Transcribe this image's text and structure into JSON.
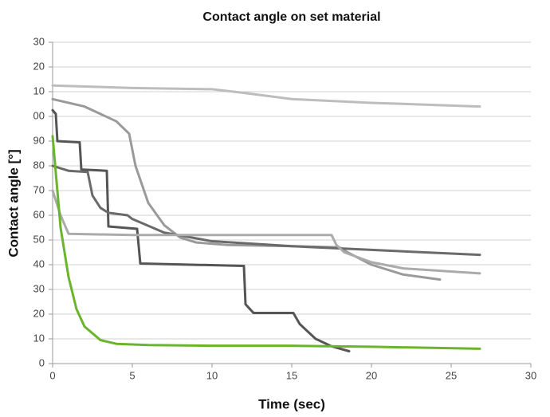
{
  "chart_data": {
    "type": "line",
    "title": "Contact angle on set material",
    "xlabel": "Time (sec)",
    "ylabel": "Contact angle [°]",
    "xlim": [
      0,
      30
    ],
    "xticks": [
      0,
      5,
      10,
      15,
      20,
      25,
      30
    ],
    "ylim": [
      0,
      130
    ],
    "yticks": [
      0,
      10,
      20,
      30,
      40,
      50,
      60,
      70,
      80,
      90,
      {
        "value": 100,
        "label": "00"
      },
      {
        "value": 110,
        "label": "10"
      },
      {
        "value": 120,
        "label": "20"
      },
      {
        "value": 130,
        "label": "30"
      }
    ],
    "grid": true,
    "series": [
      {
        "color": "#bdbdbd",
        "x": [
          0,
          5,
          10,
          12,
          15,
          20,
          26.8
        ],
        "values": [
          112.5,
          111.5,
          111,
          109.5,
          107,
          105.5,
          104
        ]
      },
      {
        "color": "#9a9a9a",
        "x": [
          0,
          2,
          4,
          4.8,
          5.2,
          6,
          7,
          8,
          9,
          11,
          15,
          18,
          18.5,
          20,
          22,
          24.3
        ],
        "values": [
          107,
          104,
          98,
          93,
          80,
          65,
          56,
          51,
          49,
          48,
          47.5,
          47,
          45,
          40,
          36,
          34
        ]
      },
      {
        "color": "#555555",
        "x": [
          0,
          0.2,
          0.3,
          1.7,
          1.8,
          3.4,
          3.5,
          5.3,
          5.5,
          12,
          12.1,
          12.6,
          15.1,
          15.5,
          16.5,
          17.5,
          18.6
        ],
        "values": [
          102.5,
          101,
          90,
          89.5,
          78.5,
          78,
          55.5,
          54.5,
          40.5,
          39.5,
          24,
          20.5,
          20.5,
          16,
          10,
          7,
          5
        ]
      },
      {
        "color": "#6a6a6a",
        "x": [
          0,
          1,
          2.2,
          2.5,
          3,
          3.5,
          4.7,
          5,
          7,
          10,
          15,
          20,
          26.8
        ],
        "values": [
          80,
          78,
          77.5,
          68,
          63,
          61,
          60,
          58.5,
          53,
          49.5,
          47.5,
          46,
          44
        ]
      },
      {
        "color": "#ababab",
        "x": [
          0,
          0.5,
          1,
          5,
          10,
          17.5,
          17.8,
          18.3,
          20,
          22,
          26.8
        ],
        "values": [
          70,
          60,
          52.5,
          52,
          52,
          52,
          48,
          45,
          41,
          38.5,
          36.5
        ]
      },
      {
        "color": "#6ab42e",
        "x": [
          0,
          0.5,
          1,
          1.5,
          2,
          3,
          4,
          6,
          10,
          15,
          20,
          26.8
        ],
        "values": [
          92,
          55,
          35,
          22,
          15,
          9.5,
          8,
          7.5,
          7.2,
          7.2,
          6.8,
          6
        ]
      }
    ]
  }
}
